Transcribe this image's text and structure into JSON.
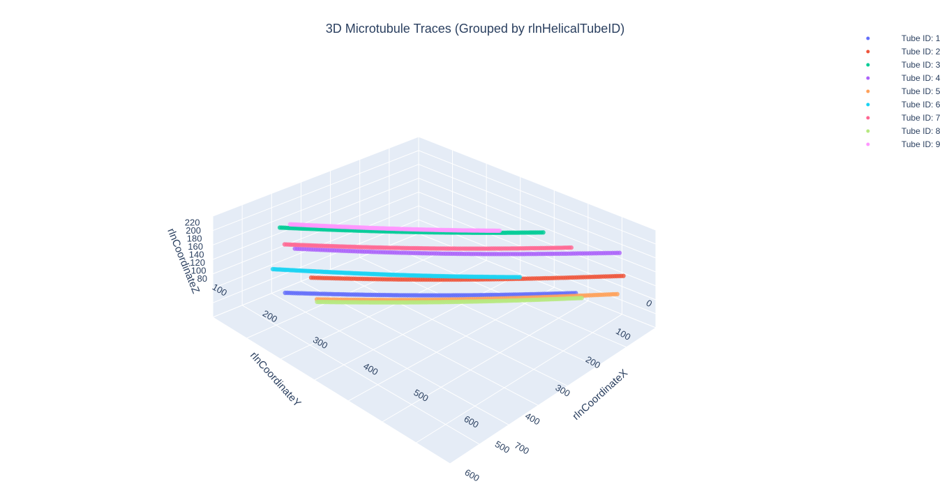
{
  "chart_data": {
    "type": "scatter3d",
    "title": "3D Microtubule Traces (Grouped by rlnHelicalTubeID)",
    "axes": {
      "x": {
        "label": "rlnCoordinateX",
        "ticks": [
          "0",
          "100",
          "200",
          "300",
          "400",
          "500",
          "600"
        ]
      },
      "y": {
        "label": "rlnCoordinateY",
        "ticks": [
          "100",
          "200",
          "300",
          "400",
          "500",
          "600",
          "700"
        ]
      },
      "z": {
        "label": "rlnCoordinateZ",
        "ticks": [
          "80",
          "100",
          "120",
          "140",
          "160",
          "180",
          "200",
          "220"
        ]
      }
    },
    "legend_position": "top-right",
    "series": [
      {
        "name": "Tube ID: 1",
        "color": "#636efa",
        "z_start": 95,
        "z_end": 98,
        "x_range": [
          0,
          40
        ],
        "y_range": [
          90,
          640
        ]
      },
      {
        "name": "Tube ID: 2",
        "color": "#ef553b",
        "z_start": 125,
        "z_end": 133,
        "x_range": [
          10,
          140
        ],
        "y_range": [
          140,
          740
        ]
      },
      {
        "name": "Tube ID: 3",
        "color": "#00cc96",
        "z_start": 215,
        "z_end": 212,
        "x_range": [
          0,
          50
        ],
        "y_range": [
          80,
          580
        ]
      },
      {
        "name": "Tube ID: 4",
        "color": "#ab63fa",
        "z_start": 178,
        "z_end": 180,
        "x_range": [
          15,
          210
        ],
        "y_range": [
          110,
          740
        ]
      },
      {
        "name": "Tube ID: 5",
        "color": "#ffa15a",
        "z_start": 85,
        "z_end": 95,
        "x_range": [
          5,
          60
        ],
        "y_range": [
          150,
          720
        ]
      },
      {
        "name": "Tube ID: 6",
        "color": "#19d3f3",
        "z_start": 140,
        "z_end": 133,
        "x_range": [
          30,
          90
        ],
        "y_range": [
          70,
          540
        ]
      },
      {
        "name": "Tube ID: 7",
        "color": "#ff6692",
        "z_start": 185,
        "z_end": 187,
        "x_range": [
          10,
          120
        ],
        "y_range": [
          90,
          640
        ]
      },
      {
        "name": "Tube ID: 8",
        "color": "#b6e880",
        "z_start": 80,
        "z_end": 88,
        "x_range": [
          0,
          30
        ],
        "y_range": [
          150,
          650
        ]
      },
      {
        "name": "Tube ID: 9",
        "color": "#ff97ff",
        "z_start": 222,
        "z_end": 218,
        "x_range": [
          5,
          70
        ],
        "y_range": [
          100,
          500
        ]
      }
    ]
  }
}
